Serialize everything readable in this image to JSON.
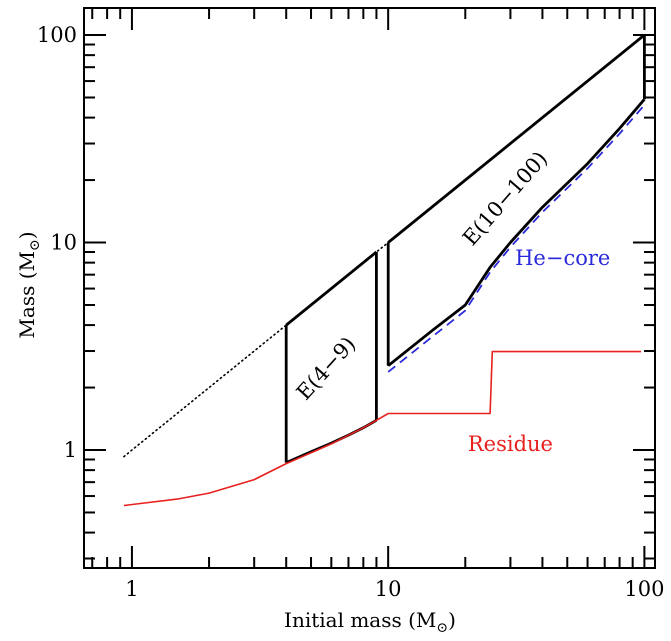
{
  "chart_data": {
    "type": "line",
    "title": "",
    "xlabel": {
      "main": "Initial mass (M",
      "sub": "⊙",
      "close": ")"
    },
    "ylabel": {
      "main": "Mass (M",
      "sub": "⊙",
      "close": ")"
    },
    "xscale": "log",
    "yscale": "log",
    "xlim": [
      0.65,
      110
    ],
    "ylim": [
      0.27,
      135
    ],
    "grid": false,
    "x_ticks": [
      {
        "value": 1,
        "label": "1"
      },
      {
        "value": 10,
        "label": "10"
      },
      {
        "value": 100,
        "label": "100"
      }
    ],
    "y_ticks": [
      {
        "value": 1,
        "label": "1"
      },
      {
        "value": 10,
        "label": "10"
      },
      {
        "value": 100,
        "label": "100"
      }
    ],
    "series": [
      {
        "key": "initial-mass-line",
        "style": "dotted",
        "color": "#000000",
        "points": [
          [
            0.93,
            0.93
          ],
          [
            4,
            4
          ],
          [
            9,
            9
          ],
          [
            10,
            10
          ],
          [
            100,
            100
          ]
        ]
      },
      {
        "key": "e49-region-bottom",
        "style": "solid-thick",
        "color": "#000000",
        "points": [
          [
            4,
            0.87
          ],
          [
            5,
            0.98
          ],
          [
            6,
            1.08
          ],
          [
            7,
            1.18
          ],
          [
            8,
            1.28
          ],
          [
            9,
            1.39
          ]
        ]
      },
      {
        "key": "e49-left-edge",
        "style": "solid-thick",
        "color": "#000000",
        "points": [
          [
            4,
            0.87
          ],
          [
            4,
            4
          ]
        ]
      },
      {
        "key": "e49-top-edge",
        "style": "solid-thick",
        "color": "#000000",
        "points": [
          [
            4,
            4
          ],
          [
            9,
            9
          ]
        ]
      },
      {
        "key": "e49-right-edge",
        "style": "solid-thick",
        "color": "#000000",
        "points": [
          [
            9,
            1.39
          ],
          [
            9,
            9
          ]
        ]
      },
      {
        "key": "e10100-left-edge",
        "style": "solid-thick",
        "color": "#000000",
        "points": [
          [
            10,
            2.55
          ],
          [
            10,
            10
          ]
        ]
      },
      {
        "key": "e10100-top-edge",
        "style": "solid-thick",
        "color": "#000000",
        "points": [
          [
            10,
            10
          ],
          [
            100,
            100
          ]
        ]
      },
      {
        "key": "e10100-right-edge",
        "style": "solid-thick",
        "color": "#000000",
        "points": [
          [
            100,
            49
          ],
          [
            100,
            100
          ]
        ]
      },
      {
        "key": "e10100-bottom-edge",
        "style": "solid-thick",
        "color": "#000000",
        "points": [
          [
            10,
            2.55
          ],
          [
            15,
            3.8
          ],
          [
            20,
            5.0
          ],
          [
            25,
            7.6
          ],
          [
            30,
            10.0
          ],
          [
            40,
            14.8
          ],
          [
            60,
            24.0
          ],
          [
            80,
            35.5
          ],
          [
            100,
            49
          ]
        ]
      },
      {
        "key": "he-core",
        "name": "He−core",
        "style": "dashed",
        "color": "#2a2ad8",
        "points": [
          [
            10,
            2.38
          ],
          [
            15,
            3.55
          ],
          [
            20,
            4.7
          ],
          [
            25,
            7.2
          ],
          [
            30,
            9.5
          ],
          [
            40,
            14.0
          ],
          [
            60,
            22.8
          ],
          [
            80,
            33.5
          ],
          [
            100,
            46
          ]
        ]
      },
      {
        "key": "residue",
        "name": "Residue",
        "style": "solid",
        "color": "#e8211f",
        "points": [
          [
            0.93,
            0.54
          ],
          [
            1.5,
            0.58
          ],
          [
            2,
            0.62
          ],
          [
            3,
            0.72
          ],
          [
            4,
            0.86
          ],
          [
            6,
            1.07
          ],
          [
            8,
            1.28
          ],
          [
            9,
            1.39
          ],
          [
            10,
            1.5
          ],
          [
            12,
            1.5
          ],
          [
            25,
            1.5
          ],
          [
            25.5,
            2.98
          ],
          [
            30,
            2.98
          ],
          [
            50,
            2.98
          ],
          [
            97,
            2.98
          ]
        ]
      }
    ],
    "annotations": [
      {
        "key": "e49-label",
        "text": "E(4−9)",
        "x": 6.0,
        "y": 2.35,
        "rotate": -48,
        "color": "#000000"
      },
      {
        "key": "e10100-label",
        "text": "E(10−100)",
        "x": 30,
        "y": 15.5,
        "rotate": -49,
        "color": "#000000"
      },
      {
        "key": "he-core-label",
        "text": "He−core",
        "x": 48,
        "y": 7.8,
        "rotate": 0,
        "color": "#2a2ad8"
      },
      {
        "key": "residue-label",
        "text": "Residue",
        "x": 30,
        "y": 0.99,
        "rotate": 0,
        "color": "#e8211f"
      }
    ]
  }
}
